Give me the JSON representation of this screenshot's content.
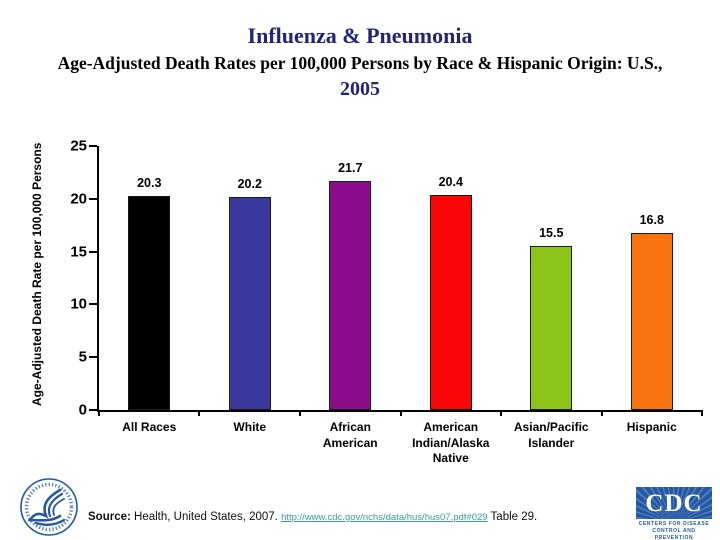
{
  "title": {
    "line1": "Influenza & Pneumonia",
    "line2": "Age-Adjusted Death Rates per 100,000 Persons by Race & Hispanic Origin: U.S.,",
    "line3": "2005"
  },
  "chart_data": {
    "type": "bar",
    "title": "Influenza & Pneumonia — Age-Adjusted Death Rates per 100,000 Persons by Race & Hispanic Origin: U.S., 2005",
    "categories": [
      "All Races",
      "White",
      "African\nAmerican",
      "American\nIndian/Alaska\nNative",
      "Asian/Pacific\nIslander",
      "Hispanic"
    ],
    "values": [
      20.3,
      20.2,
      21.7,
      20.4,
      15.5,
      16.8
    ],
    "value_labels": [
      "20.3",
      "20.2",
      "21.7",
      "20.4",
      "15.5",
      "16.8"
    ],
    "bar_colors": [
      "#000000",
      "#3A3A9E",
      "#8B0D8B",
      "#FA0606",
      "#8CC41A",
      "#F9740E"
    ],
    "xlabel": "",
    "ylabel": "Age-Adjusted Death Rate per 100,000 Persons",
    "ylim": [
      0,
      25
    ],
    "yticks": [
      0,
      5,
      10,
      15,
      20,
      25
    ],
    "grid": false,
    "legend": "none"
  },
  "footer": {
    "source_label": "Source:",
    "source_text": " Health, United States, 2007. ",
    "source_url": "http://www.cdc.gov/nchs/data/hus/hus07.pdf#029",
    "table_ref": "  Table 29."
  },
  "logos": {
    "cdc_acronym": "CDC",
    "cdc_caption_line1": "Centers for Disease",
    "cdc_caption_line2": "Control and Prevention"
  },
  "colors": {
    "title_navy": "#232377",
    "link_teal": "#3A9E9E",
    "cdc_blue": "#2458A4",
    "axis_black": "#000000"
  }
}
